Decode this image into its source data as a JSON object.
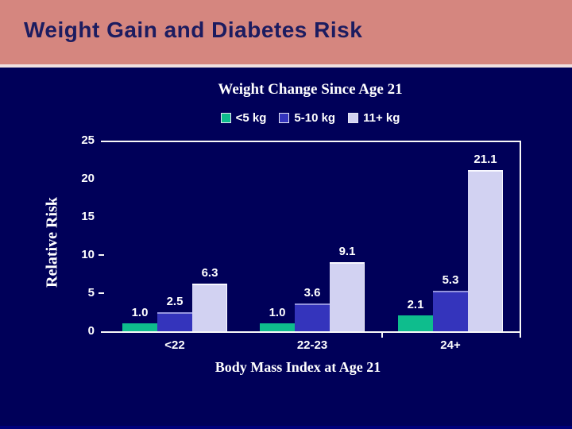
{
  "slide": {
    "title": "Weight Gain and Diabetes Risk"
  },
  "colors": {
    "header_background": "#D5867F",
    "header_text": "#1C1C60",
    "separator": "#F0E0E0",
    "body_background": "#000059",
    "axis_and_text": "#FFFFFF",
    "series_green": "#0EBD8D",
    "series_blue": "#3434BC",
    "series_blue_top_edge": "#9494DE",
    "series_lavender": "#D2D2F2",
    "series_lavender_edge": "#F8F8FF"
  },
  "chart_data": {
    "type": "bar",
    "title": "Weight Change Since Age 21",
    "xlabel": "Body Mass Index at Age 21",
    "ylabel": "Relative Risk",
    "categories": [
      "<22",
      "22-23",
      "24+"
    ],
    "series": [
      {
        "name": "<5 kg",
        "color": "#0EBD8D",
        "edge_top": "",
        "edge_right": "",
        "values": [
          1.0,
          1.0,
          2.1
        ]
      },
      {
        "name": "5-10 kg",
        "color": "#3434BC",
        "edge_top": "#9494DE",
        "edge_right": "",
        "values": [
          2.5,
          3.6,
          5.3
        ]
      },
      {
        "name": "11+ kg",
        "color": "#D2D2F2",
        "edge_top": "#F8F8FF",
        "edge_right": "#F8F8FF",
        "values": [
          6.3,
          9.1,
          21.1
        ]
      }
    ],
    "ylim": [
      0,
      25
    ],
    "yticks": [
      0,
      5,
      10,
      15,
      20,
      25
    ],
    "minor_tick_values": [
      5,
      10
    ],
    "value_label_decimals": 1,
    "legend_position": "top",
    "grid": false
  }
}
